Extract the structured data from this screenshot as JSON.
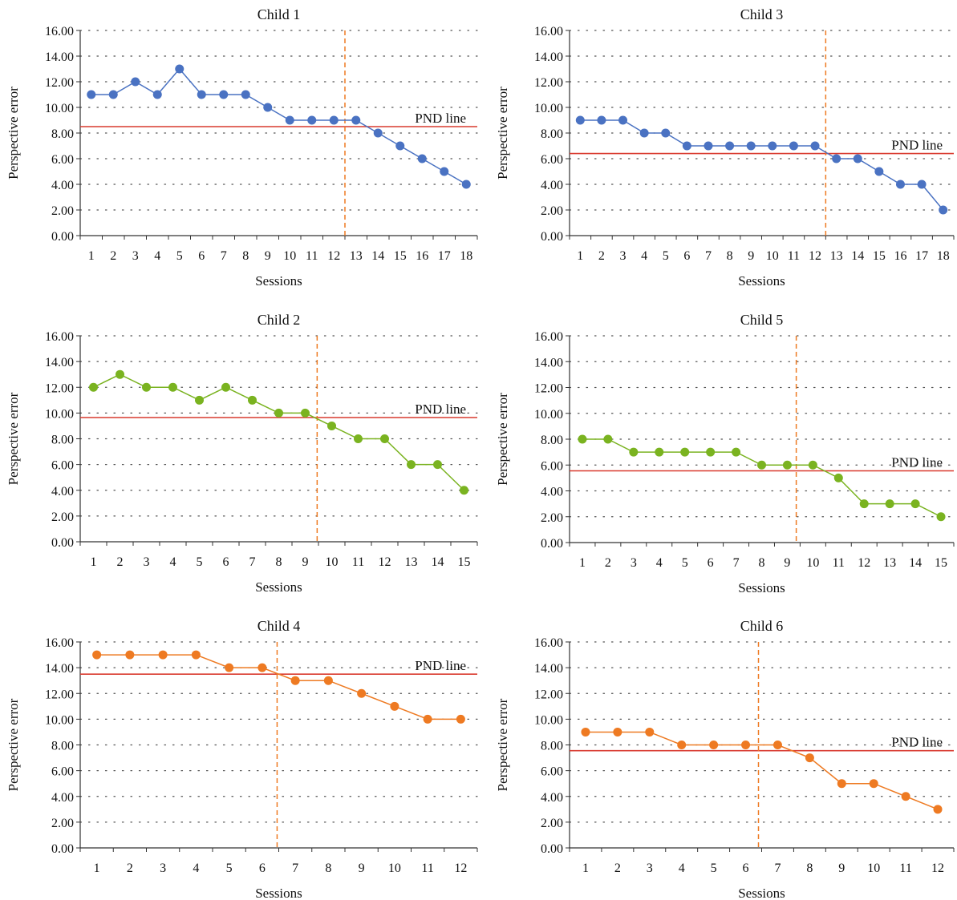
{
  "pnd_label": "PND line",
  "colors": {
    "blue": "#4a72c2",
    "green": "#7ab320",
    "orange": "#ee7a22",
    "pnd": "#d93a2f",
    "phase": "#ee7a22",
    "axis": "#333333",
    "grid": "#555555"
  },
  "chart_data": [
    {
      "type": "line",
      "title": "Child 1",
      "xlabel": "Sessions",
      "ylabel": "Perspective error",
      "ylim": [
        0,
        16
      ],
      "yticks": [
        "0.00",
        "2.00",
        "4.00",
        "6.00",
        "8.00",
        "10.00",
        "12.00",
        "14.00",
        "16.00"
      ],
      "categories": [
        "1",
        "2",
        "3",
        "4",
        "5",
        "6",
        "7",
        "8",
        "9",
        "10",
        "11",
        "12",
        "13",
        "14",
        "15",
        "16",
        "17",
        "18"
      ],
      "series": [
        {
          "values": [
            11,
            11,
            12,
            11,
            13,
            11,
            11,
            11,
            10,
            9,
            9,
            9,
            9,
            8,
            7,
            6,
            5,
            4
          ],
          "color": "#4a72c2"
        }
      ],
      "pnd_value": 8.5,
      "phase_change_after_session": 12.5,
      "grid": true
    },
    {
      "type": "line",
      "title": "Child 3",
      "xlabel": "Sessions",
      "ylabel": "Perspective error",
      "ylim": [
        0,
        16
      ],
      "yticks": [
        "0.00",
        "2.00",
        "4.00",
        "6.00",
        "8.00",
        "10.00",
        "12.00",
        "14.00",
        "16.00"
      ],
      "categories": [
        "1",
        "2",
        "3",
        "4",
        "5",
        "6",
        "7",
        "8",
        "9",
        "10",
        "11",
        "12",
        "13",
        "14",
        "15",
        "16",
        "17",
        "18"
      ],
      "series": [
        {
          "values": [
            9,
            9,
            9,
            8,
            8,
            7,
            7,
            7,
            7,
            7,
            7,
            7,
            6,
            6,
            5,
            4,
            4,
            2
          ],
          "color": "#4a72c2"
        }
      ],
      "pnd_value": 6.4,
      "phase_change_after_session": 12.5,
      "grid": true
    },
    {
      "type": "line",
      "title": "Child 2",
      "xlabel": "Sessions",
      "ylabel": "Perspective error",
      "ylim": [
        0,
        16
      ],
      "yticks": [
        "0.00",
        "2.00",
        "4.00",
        "6.00",
        "8.00",
        "10.00",
        "12.00",
        "14.00",
        "16.00"
      ],
      "categories": [
        "1",
        "2",
        "3",
        "4",
        "5",
        "6",
        "7",
        "8",
        "9",
        "10",
        "11",
        "12",
        "13",
        "14",
        "15"
      ],
      "series": [
        {
          "values": [
            12,
            13,
            12,
            12,
            11,
            12,
            11,
            10,
            10,
            9,
            8,
            8,
            6,
            6,
            4
          ],
          "color": "#7ab320"
        }
      ],
      "pnd_value": 9.65,
      "phase_change_after_session": 9.45,
      "grid": true
    },
    {
      "type": "line",
      "title": "Child 5",
      "xlabel": "Sessions",
      "ylabel": "Perspective error",
      "ylim": [
        0,
        16
      ],
      "yticks": [
        "0.00",
        "2.00",
        "4.00",
        "6.00",
        "8.00",
        "10.00",
        "12.00",
        "14.00",
        "16.00"
      ],
      "categories": [
        "1",
        "2",
        "3",
        "4",
        "5",
        "6",
        "7",
        "8",
        "9",
        "10",
        "11",
        "12",
        "13",
        "14",
        "15"
      ],
      "series": [
        {
          "values": [
            8,
            8,
            7,
            7,
            7,
            7,
            7,
            6,
            6,
            6,
            5,
            3,
            3,
            3,
            2
          ],
          "color": "#7ab320"
        }
      ],
      "pnd_value": 5.55,
      "phase_change_after_session": 9.35,
      "grid": true
    },
    {
      "type": "line",
      "title": "Child 4",
      "xlabel": "Sessions",
      "ylabel": "Perspective error",
      "ylim": [
        0,
        16
      ],
      "yticks": [
        "0.00",
        "2.00",
        "4.00",
        "6.00",
        "8.00",
        "10.00",
        "12.00",
        "14.00",
        "16.00"
      ],
      "categories": [
        "1",
        "2",
        "3",
        "4",
        "5",
        "6",
        "7",
        "8",
        "9",
        "10",
        "11",
        "12"
      ],
      "series": [
        {
          "values": [
            15,
            15,
            15,
            15,
            14,
            14,
            13,
            13,
            12,
            11,
            10,
            10
          ],
          "color": "#ee7a22"
        }
      ],
      "pnd_value": 13.5,
      "phase_change_after_session": 6.45,
      "grid": true
    },
    {
      "type": "line",
      "title": "Child 6",
      "xlabel": "Sessions",
      "ylabel": "Perspective error",
      "ylim": [
        0,
        16
      ],
      "yticks": [
        "0.00",
        "2.00",
        "4.00",
        "6.00",
        "8.00",
        "10.00",
        "12.00",
        "14.00",
        "16.00"
      ],
      "categories": [
        "1",
        "2",
        "3",
        "4",
        "5",
        "6",
        "7",
        "8",
        "9",
        "10",
        "11",
        "12"
      ],
      "series": [
        {
          "values": [
            9,
            9,
            9,
            8,
            8,
            8,
            8,
            7,
            5,
            5,
            4,
            3
          ],
          "color": "#ee7a22"
        }
      ],
      "pnd_value": 7.55,
      "phase_change_after_session": 6.4,
      "grid": true
    }
  ]
}
